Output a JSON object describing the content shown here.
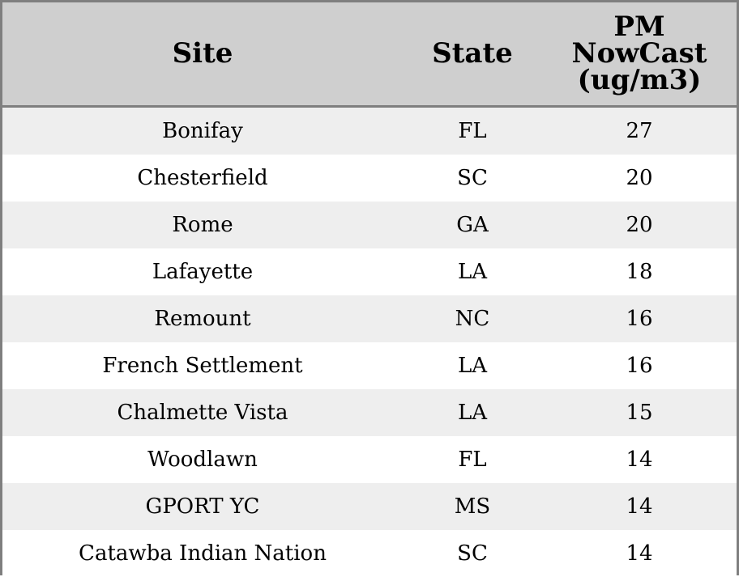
{
  "chart_data": {
    "type": "table",
    "columns": [
      "Site",
      "State",
      "PM\nNowCast\n(ug/m3)"
    ],
    "rows": [
      {
        "site": "Bonifay",
        "state": "FL",
        "value": 27
      },
      {
        "site": "Chesterfield",
        "state": "SC",
        "value": 20
      },
      {
        "site": "Rome",
        "state": "GA",
        "value": 20
      },
      {
        "site": "Lafayette",
        "state": "LA",
        "value": 18
      },
      {
        "site": "Remount",
        "state": "NC",
        "value": 16
      },
      {
        "site": "French Settlement",
        "state": "LA",
        "value": 16
      },
      {
        "site": "Chalmette Vista",
        "state": "LA",
        "value": 15
      },
      {
        "site": "Woodlawn",
        "state": "FL",
        "value": 14
      },
      {
        "site": "GPORT YC",
        "state": "MS",
        "value": 14
      },
      {
        "site": "Catawba Indian Nation",
        "state": "SC",
        "value": 14
      }
    ]
  },
  "colors": {
    "header_bg": "#cfcfcf",
    "stripe_bg": "#eeeeee",
    "row_bg": "#ffffff",
    "border": "#7f7f7f"
  }
}
